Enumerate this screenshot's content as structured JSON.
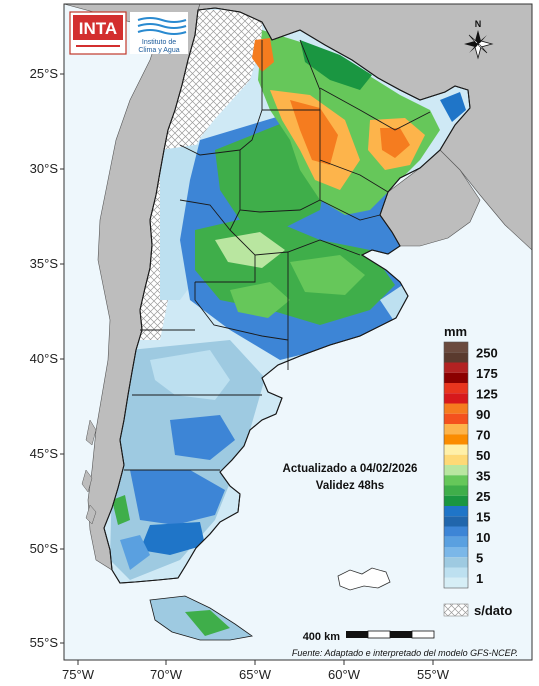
{
  "logos": {
    "inta_text": "INTA",
    "institute_line1": "Instituto de",
    "institute_line2": "Clima y Agua"
  },
  "north_arrow": {
    "label": "N"
  },
  "latitude_labels": [
    "25°S",
    "30°S",
    "35°S",
    "40°S",
    "45°S",
    "50°S",
    "55°S"
  ],
  "longitude_labels": [
    "75°W",
    "70°W",
    "65°W",
    "60°W",
    "55°W"
  ],
  "info": {
    "updated": "Actualizado a 04/02/2026",
    "validity": "Validez 48hs"
  },
  "legend": {
    "unit": "mm",
    "bins": [
      {
        "label": "250",
        "color": "#5a3a2e"
      },
      {
        "label": "175",
        "color": "#8b0000"
      },
      {
        "label": "125",
        "color": "#d7191c"
      },
      {
        "label": "90",
        "color": "#f4511e"
      },
      {
        "label": "70",
        "color": "#fb8c00"
      },
      {
        "label": "50",
        "color": "#fed976"
      },
      {
        "label": "35",
        "color": "#66c75a"
      },
      {
        "label": "25",
        "color": "#1a9641"
      },
      {
        "label": "15",
        "color": "#2166ac"
      },
      {
        "label": "10",
        "color": "#5aa0e0"
      },
      {
        "label": "5",
        "color": "#9ecae1"
      },
      {
        "label": "1",
        "color": "#d6eef6"
      }
    ],
    "intermediate_colors": [
      "#6b4a3e",
      "#b22222",
      "#e8351e",
      "#f57c1f",
      "#fdb44b",
      "#fff0a8",
      "#b9e6a0",
      "#3fae4a",
      "#1f75c8",
      "#3d85d6",
      "#7bb7e8",
      "#bde0f0"
    ],
    "no_data_label": "s/dato"
  },
  "scale_bar": {
    "label": "400 km"
  },
  "source": "Fuente: Adaptado e interpretado del modelo GFS-NCEP.",
  "colors": {
    "ocean": "#eef7fc",
    "neighbor_land": "#bdbdbd",
    "border": "#1a1a1a"
  }
}
